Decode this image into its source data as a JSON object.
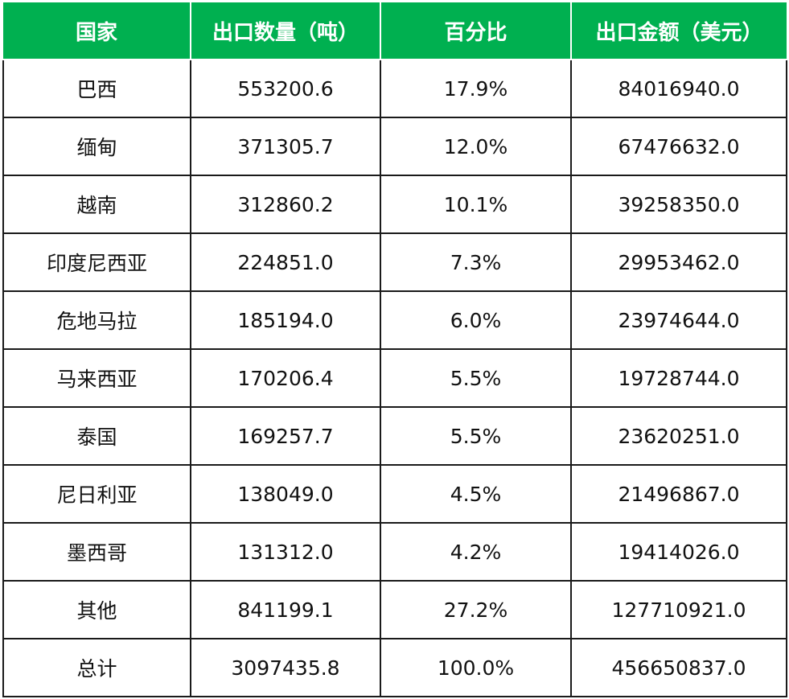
{
  "table": {
    "headers": [
      "国家",
      "出口数量（吨）",
      "百分比",
      "出口金额（美元）"
    ],
    "rows": [
      [
        "巴西",
        "553200.6",
        "17.9%",
        "84016940.0"
      ],
      [
        "缅甸",
        "371305.7",
        "12.0%",
        "67476632.0"
      ],
      [
        "越南",
        "312860.2",
        "10.1%",
        "39258350.0"
      ],
      [
        "印度尼西亚",
        "224851.0",
        "7.3%",
        "29953462.0"
      ],
      [
        "危地马拉",
        "185194.0",
        "6.0%",
        "23974644.0"
      ],
      [
        "马来西亚",
        "170206.4",
        "5.5%",
        "19728744.0"
      ],
      [
        "泰国",
        "169257.7",
        "5.5%",
        "23620251.0"
      ],
      [
        "尼日利亚",
        "138049.0",
        "4.5%",
        "21496867.0"
      ],
      [
        "墨西哥",
        "131312.0",
        "4.2%",
        "19414026.0"
      ],
      [
        "其他",
        "841199.1",
        "27.2%",
        "127710921.0"
      ],
      [
        "总计",
        "3097435.8",
        "100.0%",
        "456650837.0"
      ]
    ]
  },
  "colors": {
    "header_background": "#00b050",
    "header_text": "#ffffff",
    "border": "#1a1a1a"
  }
}
